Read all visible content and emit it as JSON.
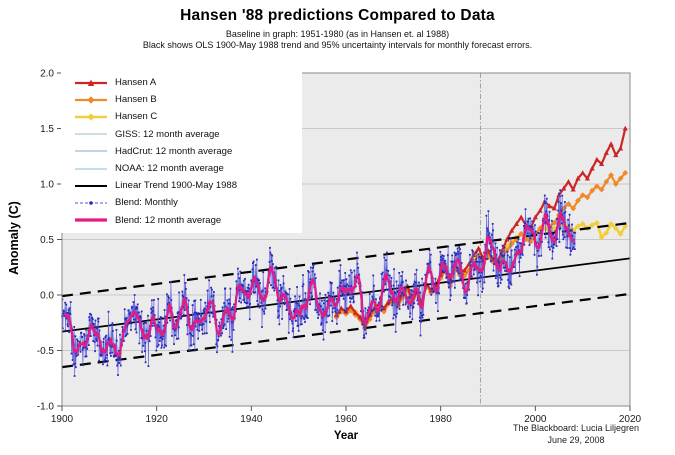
{
  "header": {
    "title": "Hansen '88 predictions Compared to Data",
    "subtitle1": "Baseline in graph: 1951-1980 (as in  Hansen et. al 1988)",
    "subtitle2": "Black shows OLS 1900-May 1988 trend and 95% uncertainty intervals for monthly forecast errors."
  },
  "axes": {
    "x_label": "Year",
    "y_label": "Anomaly (C)"
  },
  "footer": {
    "credit": "The Blackboard: Lucia Liljegren",
    "date": "June 29, 2008"
  },
  "legend": {
    "items": [
      {
        "id": "hansen-a",
        "label": "Hansen A",
        "color": "#cc2525",
        "width": 2.2,
        "marker": "triangle",
        "dash": ""
      },
      {
        "id": "hansen-b",
        "label": "Hansen B",
        "color": "#ef8a2a",
        "width": 2.2,
        "marker": "diamond",
        "dash": ""
      },
      {
        "id": "hansen-c",
        "label": "Hansen C",
        "color": "#f2cf3a",
        "width": 2.6,
        "marker": "diamond",
        "dash": ""
      },
      {
        "id": "giss-12mo",
        "label": "GISS: 12 month average",
        "color": "#b9d8c6",
        "width": 1.5,
        "marker": "none",
        "dash": ""
      },
      {
        "id": "hadcrut-12mo",
        "label": "HadCrut: 12 month average",
        "color": "#aec9d8",
        "width": 1.5,
        "marker": "none",
        "dash": ""
      },
      {
        "id": "noaa-12mo",
        "label": "NOAA: 12 month average",
        "color": "#abd6e6",
        "width": 1.5,
        "marker": "none",
        "dash": ""
      },
      {
        "id": "linear-trend",
        "label": "Linear Trend 1900-May 1988",
        "color": "#000000",
        "width": 2,
        "marker": "none",
        "dash": ""
      },
      {
        "id": "blend-monthly",
        "label": "Blend: Monthly",
        "color": "#5553d6",
        "width": 1,
        "marker": "dot",
        "dash": "3 2"
      },
      {
        "id": "blend-12mo",
        "label": "Blend: 12 month average",
        "color": "#e61a84",
        "width": 3.2,
        "marker": "none",
        "dash": ""
      }
    ]
  },
  "chart_data": {
    "type": "line",
    "title": "Hansen '88 predictions Compared to Data",
    "xlabel": "Year",
    "ylabel": "Anomaly (C)",
    "xlim": [
      1900,
      2020
    ],
    "ylim": [
      -1.0,
      2.0
    ],
    "x_ticks": [
      1900,
      1920,
      1940,
      1960,
      1980,
      2000,
      2020
    ],
    "y_ticks": [
      -1.0,
      -0.5,
      0.0,
      0.5,
      1.0,
      1.5,
      2.0
    ],
    "grid": true,
    "plot_bg": "#ebebeb",
    "grid_color": "#a8a8a8",
    "border_color": "#888888",
    "legend_position": "upper-left",
    "forecast_divider_x": 1988.4,
    "trend": {
      "label": "Linear Trend 1900-May 1988",
      "x": [
        1900,
        2020
      ],
      "y": [
        -0.33,
        0.33
      ],
      "interval_offset": 0.32,
      "color": "#000000"
    },
    "blend_annual": {
      "label": "Blend: 12 month average (GISS/HadCrut/NOAA blend, read at annual resolution)",
      "start_year": 1900,
      "end_year": 2008,
      "color": "#e61a84",
      "values": [
        -0.2,
        -0.25,
        -0.33,
        -0.42,
        -0.48,
        -0.35,
        -0.27,
        -0.43,
        -0.46,
        -0.47,
        -0.45,
        -0.44,
        -0.4,
        -0.38,
        -0.22,
        -0.15,
        -0.35,
        -0.46,
        -0.32,
        -0.26,
        -0.25,
        -0.2,
        -0.3,
        -0.25,
        -0.28,
        -0.2,
        -0.1,
        -0.21,
        -0.2,
        -0.35,
        -0.15,
        -0.1,
        -0.15,
        -0.28,
        -0.13,
        -0.18,
        -0.15,
        -0.03,
        0.0,
        -0.02,
        0.06,
        0.11,
        0.05,
        0.06,
        0.21,
        0.09,
        -0.05,
        -0.06,
        -0.06,
        -0.1,
        -0.18,
        -0.05,
        0.02,
        0.09,
        -0.12,
        -0.15,
        -0.2,
        0.04,
        0.07,
        0.04,
        -0.02,
        0.06,
        0.04,
        0.07,
        -0.2,
        -0.1,
        -0.05,
        -0.02,
        -0.07,
        0.08,
        0.03,
        -0.09,
        0.01,
        0.15,
        -0.07,
        -0.01,
        -0.11,
        0.17,
        0.07,
        0.16,
        0.26,
        0.32,
        0.14,
        0.3,
        0.15,
        0.12,
        0.18,
        0.32,
        0.38,
        0.28,
        0.44,
        0.4,
        0.22,
        0.23,
        0.31,
        0.44,
        0.33,
        0.46,
        0.6,
        0.4,
        0.41,
        0.53,
        0.62,
        0.61,
        0.53,
        0.67,
        0.6,
        0.62,
        0.44
      ]
    },
    "monthly_scatter": {
      "label": "Blend: Monthly",
      "color": "#5553d6",
      "dot_color": "#2b28b8",
      "start_year": 1900,
      "end_year": 2008.42,
      "points_per_year": 12,
      "noise_sd": 0.11
    },
    "observed_12mo_overlays": [
      {
        "name": "GISS: 12 month average",
        "color": "#b9d8c6",
        "offset": 0.03
      },
      {
        "name": "HadCrut: 12 month average",
        "color": "#aec9d8",
        "offset": -0.03
      },
      {
        "name": "NOAA: 12 month average",
        "color": "#abd6e6",
        "offset": 0.06
      }
    ],
    "hansen": {
      "start_year": 1958,
      "end_year": 2019,
      "series": [
        {
          "name": "Hansen A",
          "color": "#cc2525",
          "marker": "triangle",
          "values": [
            -0.18,
            -0.12,
            -0.15,
            -0.1,
            -0.16,
            -0.2,
            -0.28,
            -0.18,
            -0.12,
            -0.08,
            -0.12,
            -0.06,
            -0.02,
            -0.08,
            0.02,
            0.08,
            -0.06,
            0.04,
            -0.08,
            0.1,
            0.04,
            0.09,
            0.18,
            0.26,
            0.12,
            0.28,
            0.22,
            0.22,
            0.28,
            0.36,
            0.42,
            0.33,
            0.4,
            0.32,
            0.3,
            0.4,
            0.5,
            0.58,
            0.64,
            0.7,
            0.63,
            0.6,
            0.7,
            0.76,
            0.84,
            0.8,
            0.78,
            0.9,
            0.96,
            1.02,
            0.95,
            1.05,
            1.1,
            1.05,
            1.14,
            1.22,
            1.18,
            1.28,
            1.36,
            1.26,
            1.32,
            1.5
          ]
        },
        {
          "name": "Hansen B",
          "color": "#ef8a2a",
          "marker": "diamond",
          "values": [
            -0.2,
            -0.15,
            -0.17,
            -0.14,
            -0.18,
            -0.22,
            -0.3,
            -0.22,
            -0.15,
            -0.12,
            -0.15,
            -0.08,
            -0.05,
            -0.1,
            -0.02,
            0.05,
            -0.08,
            0.02,
            -0.06,
            0.08,
            0.02,
            0.07,
            0.15,
            0.22,
            0.08,
            0.24,
            0.18,
            0.17,
            0.22,
            0.3,
            0.35,
            0.28,
            0.35,
            0.3,
            0.26,
            0.34,
            0.4,
            0.46,
            0.5,
            0.55,
            0.5,
            0.48,
            0.55,
            0.6,
            0.66,
            0.62,
            0.65,
            0.72,
            0.78,
            0.82,
            0.78,
            0.85,
            0.9,
            0.88,
            0.94,
            0.98,
            0.95,
            1.02,
            1.08,
            1.0,
            1.05,
            1.1
          ]
        },
        {
          "name": "Hansen C",
          "color": "#f2cf3a",
          "marker": "diamond",
          "values": [
            -0.18,
            -0.14,
            -0.16,
            -0.12,
            -0.15,
            -0.2,
            -0.26,
            -0.18,
            -0.12,
            -0.1,
            -0.12,
            -0.06,
            -0.03,
            -0.08,
            0.0,
            0.06,
            -0.05,
            0.03,
            -0.06,
            0.09,
            0.03,
            0.08,
            0.16,
            0.24,
            0.1,
            0.26,
            0.2,
            0.19,
            0.24,
            0.32,
            0.36,
            0.3,
            0.38,
            0.34,
            0.3,
            0.38,
            0.44,
            0.48,
            0.52,
            0.55,
            0.52,
            0.5,
            0.55,
            0.58,
            0.6,
            0.58,
            0.6,
            0.62,
            0.63,
            0.62,
            0.58,
            0.62,
            0.64,
            0.6,
            0.63,
            0.65,
            0.52,
            0.56,
            0.64,
            0.6,
            0.55,
            0.62
          ]
        }
      ]
    }
  }
}
